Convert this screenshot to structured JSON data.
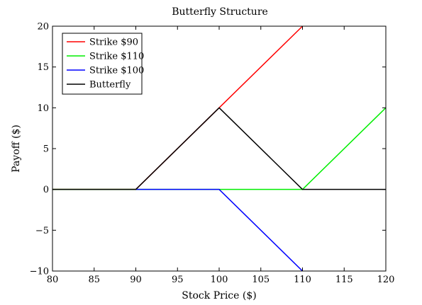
{
  "chart_data": {
    "type": "line",
    "title": "Butterfly Structure",
    "xlabel": "Stock Price ($)",
    "ylabel": "Payoff ($)",
    "xlim": [
      80,
      120
    ],
    "ylim": [
      -10,
      20
    ],
    "xticks": [
      80,
      85,
      90,
      95,
      100,
      105,
      110,
      115,
      120
    ],
    "yticks": [
      -10,
      -5,
      0,
      5,
      10,
      15,
      20
    ],
    "xtick_labels": [
      "80",
      "85",
      "90",
      "95",
      "100",
      "105",
      "110",
      "115",
      "120"
    ],
    "ytick_labels": [
      "−10",
      "−5",
      "0",
      "5",
      "10",
      "15",
      "20"
    ],
    "grid": false,
    "legend_position": "top-left",
    "series": [
      {
        "name": "Strike $90",
        "color": "#ff0000",
        "x": [
          80,
          90,
          100,
          110
        ],
        "y": [
          0,
          0,
          10,
          20
        ]
      },
      {
        "name": "Strike $110",
        "color": "#00ee00",
        "x": [
          80,
          110,
          120
        ],
        "y": [
          0,
          0,
          10
        ]
      },
      {
        "name": "Strike $100",
        "color": "#0000ff",
        "x": [
          90,
          100,
          110
        ],
        "y": [
          0,
          0,
          -10
        ]
      },
      {
        "name": "Butterfly",
        "color": "#000000",
        "x": [
          80,
          90,
          100,
          110,
          120
        ],
        "y": [
          0,
          0,
          10,
          0,
          0
        ]
      }
    ]
  }
}
